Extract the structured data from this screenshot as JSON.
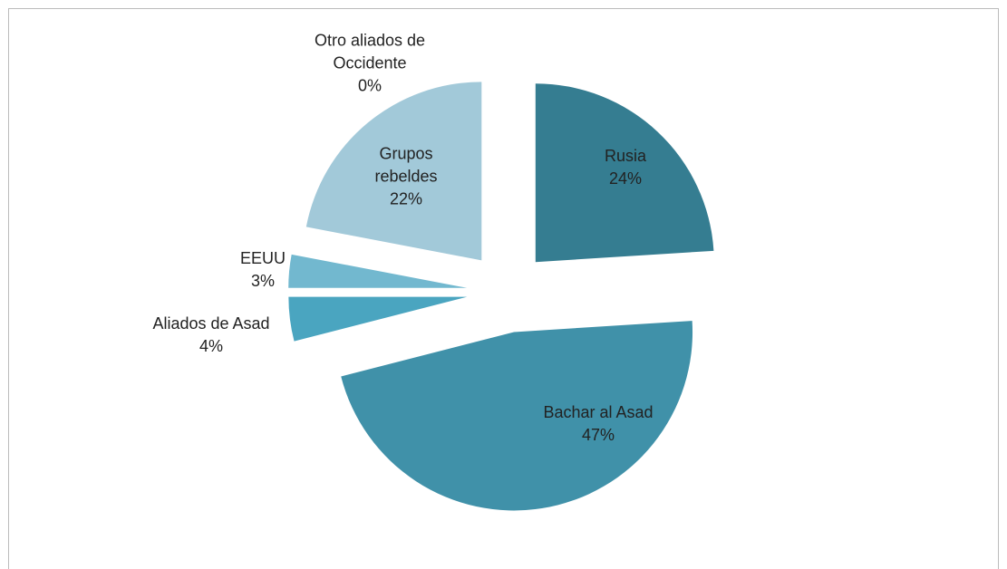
{
  "chart_data": {
    "type": "pie",
    "categories": [
      "Rusia",
      "Bachar al Asad",
      "Aliados de Asad",
      "EEUU",
      "Grupos rebeldes",
      "Otro aliados de Occidente"
    ],
    "values": [
      24,
      47,
      4,
      3,
      22,
      0
    ],
    "value_labels": [
      "24%",
      "47%",
      "4%",
      "3%",
      "22%",
      "0%"
    ],
    "colors": [
      "#357d91",
      "#4091a9",
      "#4aa5c0",
      "#72b8cf",
      "#a2c9d9",
      "#c4dde7"
    ]
  }
}
